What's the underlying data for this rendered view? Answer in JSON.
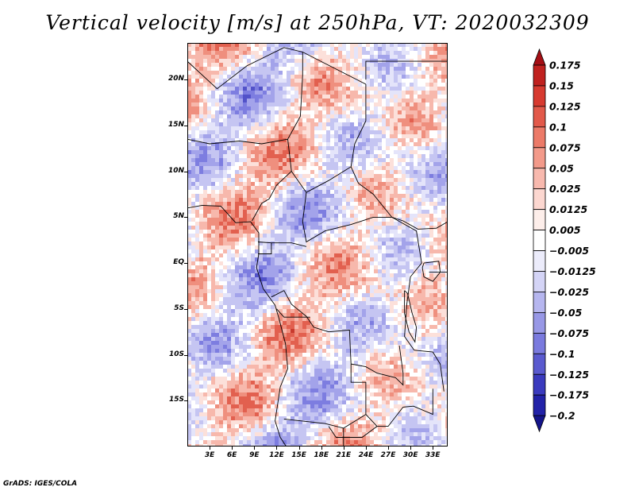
{
  "title": "Vertical velocity [m/s] at 250hPa, VT: 2020032309",
  "map": {
    "lon_range": [
      0,
      35
    ],
    "lat_range": [
      -20,
      24
    ],
    "lat_labels": [
      {
        "lat": 20,
        "text": "20N"
      },
      {
        "lat": 15,
        "text": "15N"
      },
      {
        "lat": 10,
        "text": "10N"
      },
      {
        "lat": 5,
        "text": "5N"
      },
      {
        "lat": 0,
        "text": "EQ"
      },
      {
        "lat": -5,
        "text": "5S"
      },
      {
        "lat": -10,
        "text": "10S"
      },
      {
        "lat": -15,
        "text": "15S"
      }
    ],
    "lon_labels": [
      {
        "lon": 3,
        "text": "3E"
      },
      {
        "lon": 6,
        "text": "6E"
      },
      {
        "lon": 9,
        "text": "9E"
      },
      {
        "lon": 12,
        "text": "12E"
      },
      {
        "lon": 15,
        "text": "15E"
      },
      {
        "lon": 18,
        "text": "18E"
      },
      {
        "lon": 21,
        "text": "21E"
      },
      {
        "lon": 24,
        "text": "24E"
      },
      {
        "lon": 27,
        "text": "27E"
      },
      {
        "lon": 30,
        "text": "30E"
      },
      {
        "lon": 33,
        "text": "33E"
      }
    ]
  },
  "colorbar": {
    "levels": [
      "0.175",
      "0.15",
      "0.125",
      "0.1",
      "0.075",
      "0.05",
      "0.025",
      "0.0125",
      "0.005",
      "-0.005",
      "-0.0125",
      "-0.025",
      "-0.05",
      "-0.075",
      "-0.1",
      "-0.125",
      "-0.175",
      "-0.2"
    ],
    "colors": [
      "#a50f15",
      "#c0211f",
      "#d73a30",
      "#e2594a",
      "#ec7a68",
      "#f39a8a",
      "#f8b9ae",
      "#fcd7d0",
      "#fdeeea",
      "#ffffff",
      "#ececfb",
      "#d4d4f6",
      "#b6b6ef",
      "#9898e6",
      "#7a7ade",
      "#5a5acf",
      "#3a3abe",
      "#2222a8",
      "#14148a"
    ]
  },
  "credit": "GrADS: IGES/COLA"
}
